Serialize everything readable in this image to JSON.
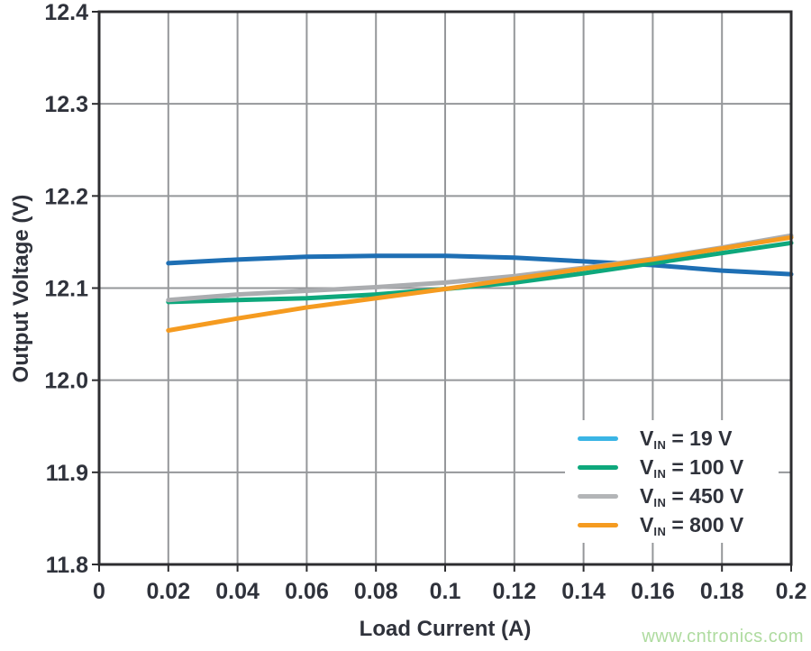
{
  "watermark": {
    "text": "www.cntronics.com",
    "color": "#aedb9f"
  },
  "chart_data": {
    "type": "line",
    "title": "",
    "xlabel": "Load Current (A)",
    "ylabel": "Output Voltage (V)",
    "xlim": [
      0,
      0.2
    ],
    "ylim": [
      11.8,
      12.4
    ],
    "grid": true,
    "legend_position": "lower right",
    "x_ticks": [
      0,
      0.02,
      0.04,
      0.06,
      0.08,
      0.1,
      0.12,
      0.14,
      0.16,
      0.18,
      0.2
    ],
    "x_tick_labels": [
      "0",
      "0.02",
      "0.04",
      "0.06",
      "0.08",
      "0.1",
      "0.12",
      "0.14",
      "0.16",
      "0.18",
      "0.2"
    ],
    "y_ticks": [
      11.8,
      11.9,
      12.0,
      12.1,
      12.2,
      12.3,
      12.4
    ],
    "y_tick_labels": [
      "11.8",
      "11.9",
      "12.0",
      "12.1",
      "12.2",
      "12.3",
      "12.4"
    ],
    "x": [
      0.02,
      0.04,
      0.06,
      0.08,
      0.1,
      0.12,
      0.14,
      0.16,
      0.18,
      0.2
    ],
    "series": [
      {
        "name": "VIN = 19 V",
        "legend": {
          "v": "V",
          "sub": "IN",
          "eq": "= 19 V"
        },
        "color": "#1e6fb4",
        "swatch_color": "#3ab5e5",
        "values": [
          12.127,
          12.131,
          12.134,
          12.135,
          12.135,
          12.133,
          12.129,
          12.125,
          12.119,
          12.115
        ]
      },
      {
        "name": "VIN = 100 V",
        "legend": {
          "v": "V",
          "sub": "IN",
          "eq": "= 100 V"
        },
        "color": "#0ea87c",
        "swatch_color": "#0ea87c",
        "values": [
          12.085,
          12.087,
          12.089,
          12.093,
          12.099,
          12.106,
          12.116,
          12.127,
          12.138,
          12.149
        ]
      },
      {
        "name": "VIN = 450 V",
        "legend": {
          "v": "V",
          "sub": "IN",
          "eq": "= 450 V"
        },
        "color": "#abadb0",
        "swatch_color": "#b3b5b7",
        "values": [
          12.087,
          12.093,
          12.097,
          12.101,
          12.106,
          12.113,
          12.122,
          12.132,
          12.144,
          12.157
        ]
      },
      {
        "name": "VIN = 800 V",
        "legend": {
          "v": "V",
          "sub": "IN",
          "eq": "= 800 V"
        },
        "color": "#f59b20",
        "swatch_color": "#f59b20",
        "values": [
          12.054,
          12.067,
          12.079,
          12.089,
          12.099,
          12.11,
          12.121,
          12.131,
          12.143,
          12.155
        ]
      }
    ],
    "colors": {
      "grid": "#95979a",
      "border": "#2d2d30",
      "text": "#2f323b",
      "background": "#ffffff"
    }
  }
}
